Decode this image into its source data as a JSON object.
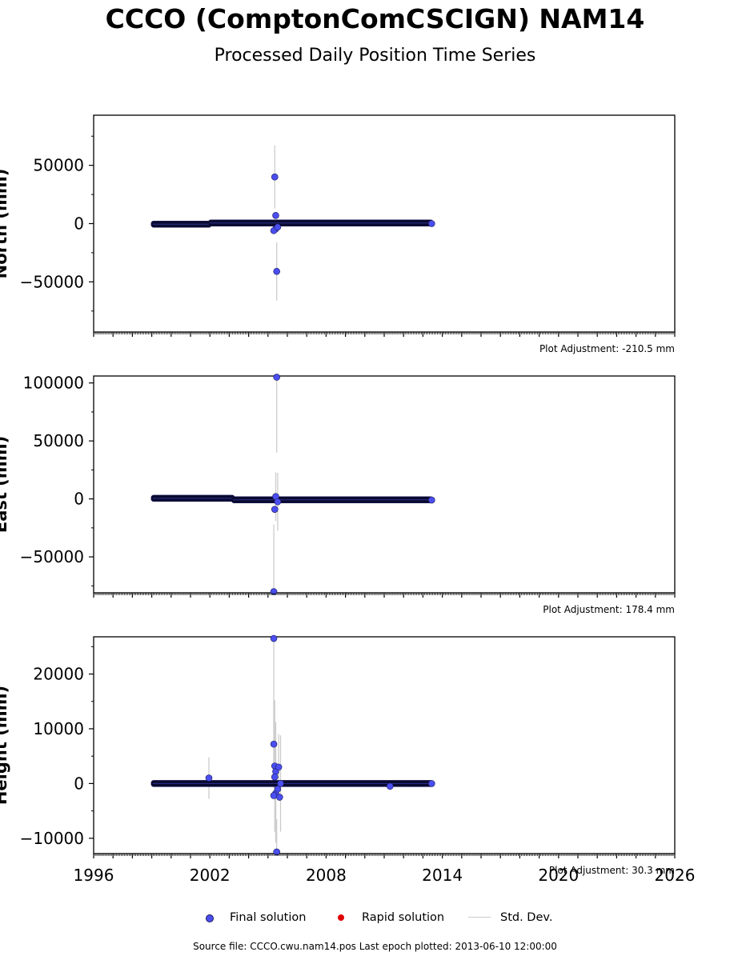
{
  "header": {
    "title": "CCCO (ComptonComCSCIGN) NAM14",
    "subtitle": "Processed Daily Position Time Series"
  },
  "colors": {
    "final": "#4a4ef0",
    "final_edge": "#1a1a5a",
    "rapid": "#e00000",
    "stddev": "#cccccc",
    "band": "#0a0a30"
  },
  "legend": {
    "final_label": "Final solution",
    "rapid_label": "Rapid solution",
    "stddev_label": "Std. Dev."
  },
  "footer": {
    "source": "Source file: CCCO.cwu.nam14.pos  Last epoch plotted: 2013-06-10 12:00:00"
  },
  "chart_data": [
    {
      "type": "scatter",
      "ylabel": "North (mm)",
      "xlim": [
        1996,
        2026
      ],
      "ylim": [
        -93000,
        93000
      ],
      "yticks": [
        -50000,
        0,
        50000
      ],
      "ytick_labels": [
        "−50000",
        "0",
        "50000"
      ],
      "adjustment": "Plot Adjustment: -210.5 mm",
      "band_segments": [
        {
          "x0": 1999.05,
          "x1": 2002.0,
          "y": -500
        },
        {
          "x0": 2002.0,
          "x1": 2013.45,
          "y": 500
        }
      ],
      "points": [
        {
          "x": 2005.35,
          "y": 40000,
          "err": 27000
        },
        {
          "x": 2005.4,
          "y": 7000,
          "err": 0
        },
        {
          "x": 2005.4,
          "y": -4500,
          "err": 0
        },
        {
          "x": 2005.3,
          "y": -6000,
          "err": 0
        },
        {
          "x": 2005.5,
          "y": -3000,
          "err": 0
        },
        {
          "x": 2005.45,
          "y": -41000,
          "err": 25000
        },
        {
          "x": 2013.45,
          "y": 0,
          "err": 0
        }
      ]
    },
    {
      "type": "scatter",
      "ylabel": "East (mm)",
      "xlim": [
        1996,
        2026
      ],
      "ylim": [
        -81000,
        106000
      ],
      "yticks": [
        -50000,
        0,
        50000,
        100000
      ],
      "ytick_labels": [
        "−50000",
        "0",
        "50000",
        "100000"
      ],
      "adjustment": "Plot Adjustment: 178.4 mm",
      "band_segments": [
        {
          "x0": 1999.05,
          "x1": 2003.2,
          "y": 500
        },
        {
          "x0": 2003.2,
          "x1": 2013.45,
          "y": -800
        }
      ],
      "points": [
        {
          "x": 2005.45,
          "y": 105000,
          "err": 65000
        },
        {
          "x": 2005.4,
          "y": 2000,
          "err": 21000
        },
        {
          "x": 2005.35,
          "y": -9000,
          "err": 0
        },
        {
          "x": 2005.3,
          "y": -80000,
          "err": 58000
        },
        {
          "x": 2005.5,
          "y": -2500,
          "err": 25000
        },
        {
          "x": 2013.45,
          "y": -1000,
          "err": 0
        }
      ]
    },
    {
      "type": "scatter",
      "ylabel": "Height (mm)",
      "xlim": [
        1996,
        2026
      ],
      "ylim": [
        -12800,
        26800
      ],
      "yticks": [
        -10000,
        0,
        10000,
        20000
      ],
      "ytick_labels": [
        "−10000",
        "0",
        "10000",
        "20000"
      ],
      "xticks": [
        1996,
        2002,
        2008,
        2014,
        2020,
        2026
      ],
      "adjustment": "Plot Adjustment: 30.3 mm",
      "band_segments": [
        {
          "x0": 1999.05,
          "x1": 2013.45,
          "y": 0
        }
      ],
      "points": [
        {
          "x": 2001.95,
          "y": 1000,
          "err": 3800
        },
        {
          "x": 2005.3,
          "y": 26500,
          "err": 26500
        },
        {
          "x": 2005.3,
          "y": 7200,
          "err": 8000
        },
        {
          "x": 2005.35,
          "y": 3200,
          "err": 12000
        },
        {
          "x": 2005.4,
          "y": 2200,
          "err": 9000
        },
        {
          "x": 2005.35,
          "y": 1200,
          "err": 0
        },
        {
          "x": 2005.4,
          "y": -1800,
          "err": 9000
        },
        {
          "x": 2005.3,
          "y": -2200,
          "err": 0
        },
        {
          "x": 2005.55,
          "y": 3000,
          "err": 6000
        },
        {
          "x": 2005.6,
          "y": -2500,
          "err": 0
        },
        {
          "x": 2005.5,
          "y": -1000,
          "err": 0
        },
        {
          "x": 2005.45,
          "y": -12500,
          "err": 6000
        },
        {
          "x": 2005.65,
          "y": 0,
          "err": 8800
        },
        {
          "x": 2011.3,
          "y": -500,
          "err": 0
        },
        {
          "x": 2013.45,
          "y": 0,
          "err": 0
        }
      ]
    }
  ]
}
